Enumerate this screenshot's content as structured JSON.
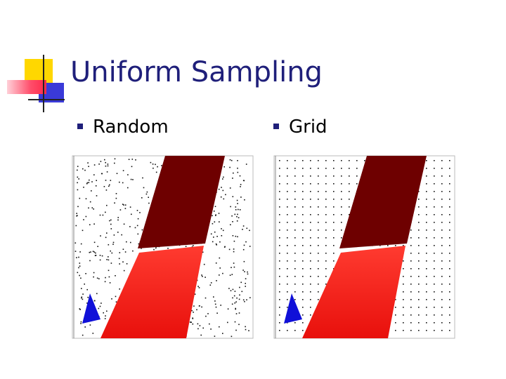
{
  "title": "Uniform Sampling",
  "bullets": [
    "Random",
    "Grid"
  ]
}
